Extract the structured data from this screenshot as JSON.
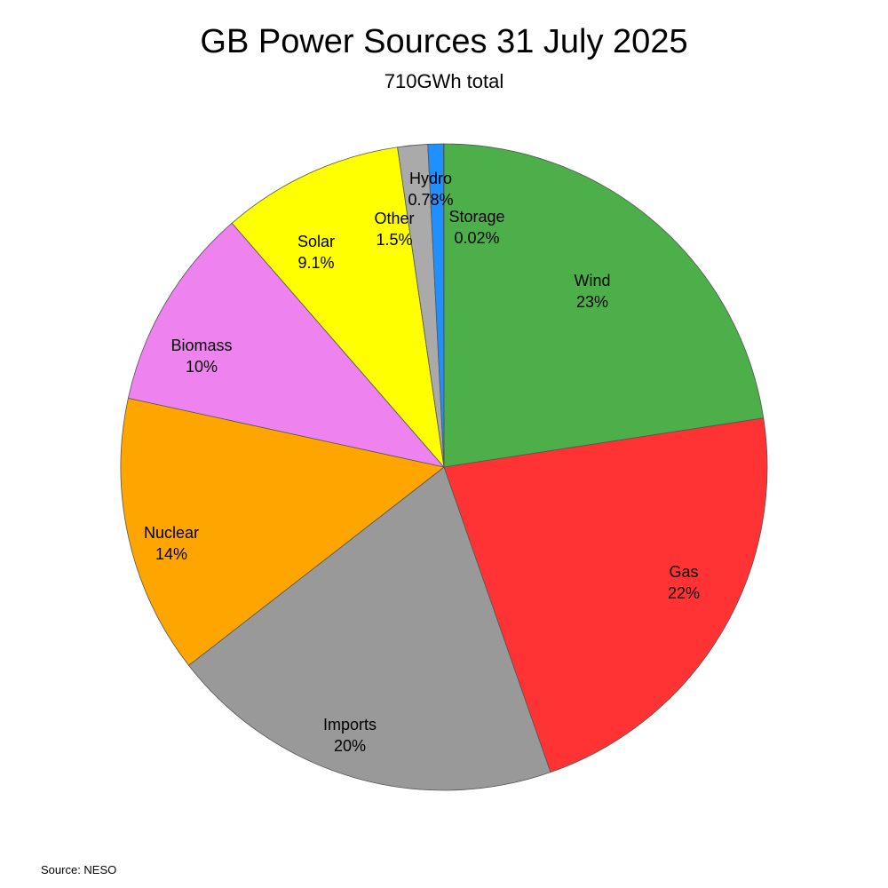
{
  "title": "GB Power Sources 31 July 2025",
  "subtitle": "710GWh total",
  "source": "Source: NESO",
  "chart_data": {
    "type": "pie",
    "title": "GB Power Sources 31 July 2025",
    "subtitle": "710GWh total",
    "start_angle_deg": 90,
    "direction": "clockwise",
    "slices": [
      {
        "name": "Wind",
        "label": "Wind",
        "percent_label": "23%",
        "value": 22.6,
        "color": "#4daf4a"
      },
      {
        "name": "Gas",
        "label": "Gas",
        "percent_label": "22%",
        "value": 22.1,
        "color": "#ff3333"
      },
      {
        "name": "Imports",
        "label": "Imports",
        "percent_label": "20%",
        "value": 19.85,
        "color": "#999999"
      },
      {
        "name": "Nuclear",
        "label": "Nuclear",
        "percent_label": "14%",
        "value": 13.95,
        "color": "#ffa500"
      },
      {
        "name": "Biomass",
        "label": "Biomass",
        "percent_label": "10%",
        "value": 10.2,
        "color": "#ee82ee"
      },
      {
        "name": "Solar",
        "label": "Solar",
        "percent_label": "9.1%",
        "value": 9.1,
        "color": "#ffff00"
      },
      {
        "name": "Other",
        "label": "Other",
        "percent_label": "1.5%",
        "value": 1.5,
        "color": "#aaaaaa"
      },
      {
        "name": "Hydro",
        "label": "Hydro",
        "percent_label": "0.78%",
        "value": 0.78,
        "color": "#1e90ff"
      },
      {
        "name": "Storage",
        "label": "Storage",
        "percent_label": "0.02%",
        "value": 0.02,
        "color": "#2f6fb0"
      }
    ]
  }
}
